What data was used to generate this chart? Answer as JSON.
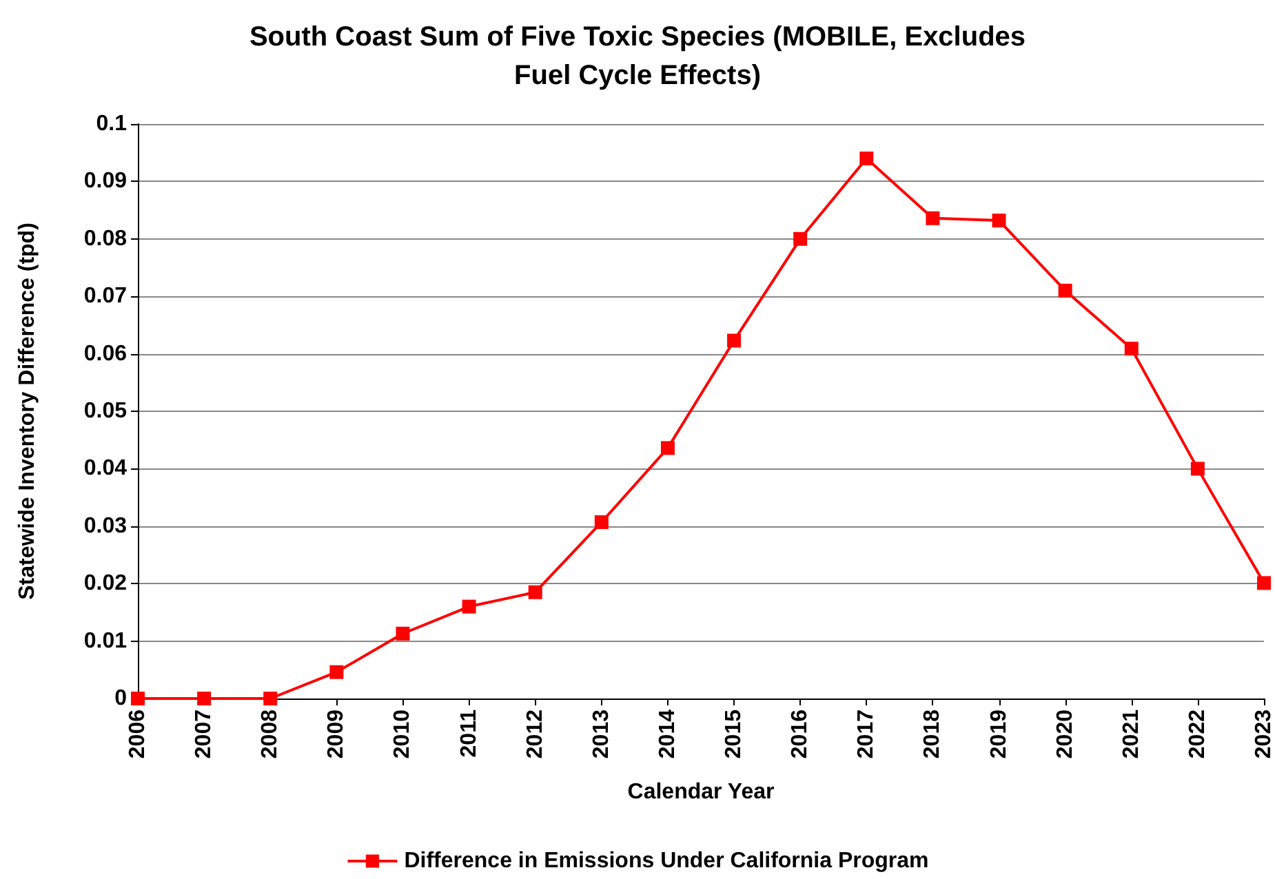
{
  "chart_data": {
    "type": "line",
    "title": "South Coast Sum of Five Toxic Species (MOBILE, Excludes\nFuel Cycle Effects)",
    "xlabel": "Calendar Year",
    "ylabel": "Statewide Inventory Difference (tpd)",
    "categories": [
      "2006",
      "2007",
      "2008",
      "2009",
      "2010",
      "2011",
      "2012",
      "2013",
      "2014",
      "2015",
      "2016",
      "2017",
      "2018",
      "2019",
      "2020",
      "2021",
      "2022",
      "2023"
    ],
    "series": [
      {
        "name": "Difference in Emissions Under California Program",
        "color": "#ff0000",
        "values": [
          0,
          0,
          0,
          0.0046,
          0.0113,
          0.016,
          0.0185,
          0.0307,
          0.0436,
          0.0623,
          0.08,
          0.094,
          0.0836,
          0.0832,
          0.071,
          0.0609,
          0.04,
          0.0201
        ]
      }
    ],
    "ylim": [
      0,
      0.1
    ],
    "yticks": [
      0,
      0.01,
      0.02,
      0.03,
      0.04,
      0.05,
      0.06,
      0.07,
      0.08,
      0.09,
      0.1
    ],
    "grid": "y",
    "legend": "bottom",
    "marker": "square",
    "line_style": "solid"
  }
}
